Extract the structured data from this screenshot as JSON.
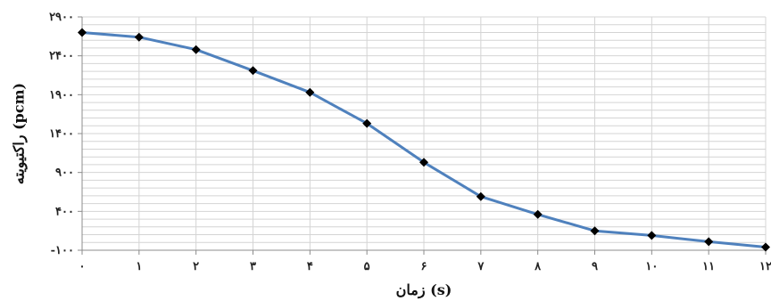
{
  "chart_data": {
    "type": "line",
    "title": "",
    "xlabel": "زمان (s)",
    "ylabel": "راکتیویته (pcm)",
    "x": [
      0,
      1,
      2,
      3,
      4,
      5,
      6,
      7,
      8,
      9,
      10,
      11,
      12
    ],
    "x_tick_labels": [
      "۰",
      "۱",
      "۲",
      "۳",
      "۴",
      "۵",
      "۶",
      "۷",
      "۸",
      "۹",
      "۱۰",
      "۱۱",
      "۱۲"
    ],
    "y_ticks": [
      -100,
      400,
      900,
      1400,
      1900,
      2400,
      2900
    ],
    "y_tick_labels": [
      "-۱۰۰",
      "۴۰۰",
      "۹۰۰",
      "۱۴۰۰",
      "۱۹۰۰",
      "۲۴۰۰",
      "۲۹۰۰"
    ],
    "ylim": [
      -100,
      2900
    ],
    "xlim": [
      0,
      12
    ],
    "grid": true,
    "legend": "none",
    "series": [
      {
        "values": [
          2700,
          2640,
          2480,
          2210,
          1930,
          1530,
          1030,
          590,
          360,
          150,
          90,
          10,
          -60
        ],
        "color": "#4f81bd",
        "marker": "diamond",
        "marker_color": "#000000"
      }
    ]
  }
}
